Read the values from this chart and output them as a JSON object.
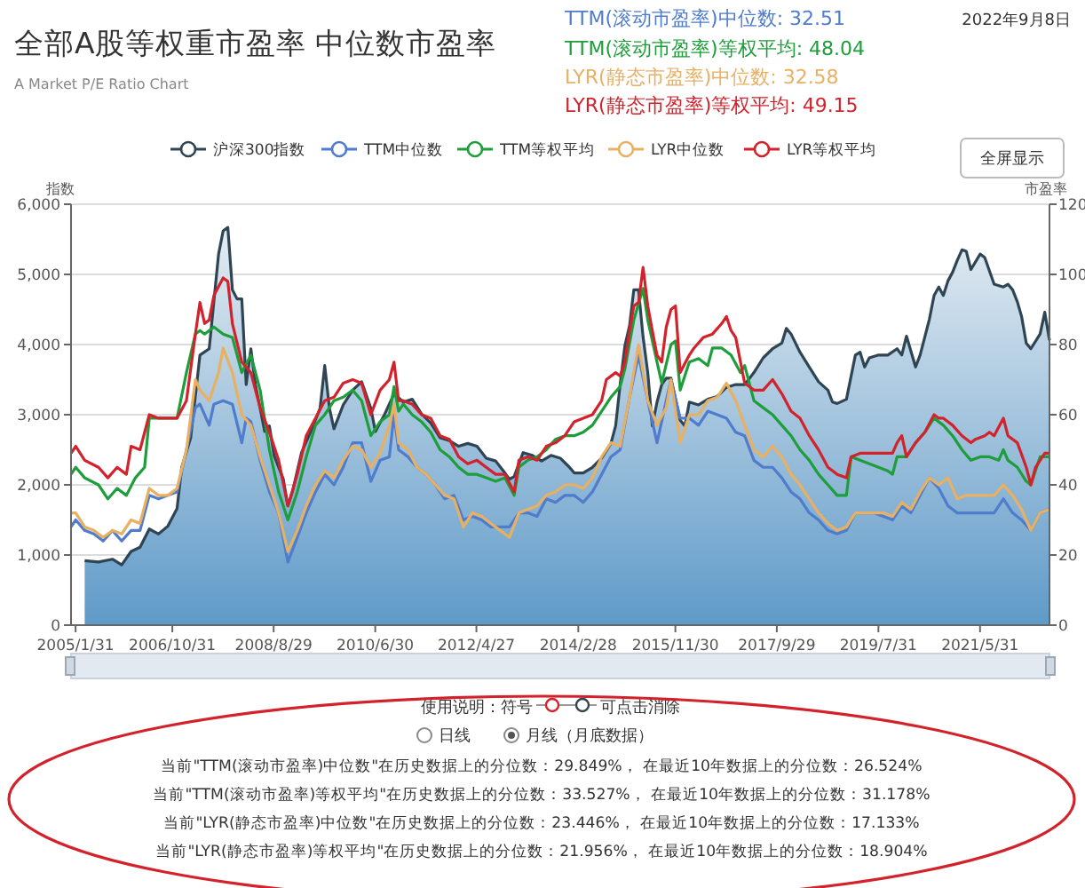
{
  "chart_data": {
    "type": "line",
    "title": "全部A股等权重市盈率 中位数市盈率",
    "subtitle": "A Market P/E Ratio Chart",
    "ylabel": "指数",
    "y2label": "市盈率",
    "xlim": [
      "2005-01",
      "2022-09"
    ],
    "xticks": [
      {
        "value": "2005-01-31",
        "label": "2005/1/31"
      },
      {
        "value": "2006-10-31",
        "label": "2006/10/31"
      },
      {
        "value": "2008-08-29",
        "label": "2008/8/29"
      },
      {
        "value": "2010-06-30",
        "label": "2010/6/30"
      },
      {
        "value": "2012-04-27",
        "label": "2012/4/27"
      },
      {
        "value": "2014-02-28",
        "label": "2014/2/28"
      },
      {
        "value": "2015-11-30",
        "label": "2015/11/30"
      },
      {
        "value": "2017-09-29",
        "label": "2017/9/29"
      },
      {
        "value": "2019-07-31",
        "label": "2019/7/31"
      },
      {
        "value": "2021-05-31",
        "label": "2021/5/31"
      }
    ],
    "ylim": [
      0,
      6000
    ],
    "yticks": [
      {
        "value": 0,
        "label": "0"
      },
      {
        "value": 1000,
        "label": "1,000"
      },
      {
        "value": 2000,
        "label": "2,000"
      },
      {
        "value": 3000,
        "label": "3,000"
      },
      {
        "value": 4000,
        "label": "4,000"
      },
      {
        "value": 5000,
        "label": "5,000"
      },
      {
        "value": 6000,
        "label": "6,000"
      }
    ],
    "y2lim": [
      0,
      120
    ],
    "y2ticks": [
      0,
      20,
      40,
      60,
      80,
      100,
      120
    ],
    "grid": "y",
    "legend": "top",
    "series": [
      {
        "name": "沪深300指数",
        "type": "area",
        "color": "#2f4554",
        "x": [
          "2005-04",
          "2005-07",
          "2005-10",
          "2005-12",
          "2006-02",
          "2006-04",
          "2006-06",
          "2006-08",
          "2006-10",
          "2006-12",
          "2007-01",
          "2007-03",
          "2007-05",
          "2007-07",
          "2007-09",
          "2007-10",
          "2007-11",
          "2007-12",
          "2008-01",
          "2008-02",
          "2008-03",
          "2008-04",
          "2008-05",
          "2008-07",
          "2008-08",
          "2008-09",
          "2008-10",
          "2008-11",
          "2008-12",
          "2009-01",
          "2009-03",
          "2009-05",
          "2009-07",
          "2009-08",
          "2009-09",
          "2009-10",
          "2009-12",
          "2010-02",
          "2010-04",
          "2010-06",
          "2010-07",
          "2010-09",
          "2010-11",
          "2011-01",
          "2011-03",
          "2011-05",
          "2011-07",
          "2011-09",
          "2011-11",
          "2012-01",
          "2012-03",
          "2012-05",
          "2012-07",
          "2012-09",
          "2012-11",
          "2012-12",
          "2013-01",
          "2013-03",
          "2013-05",
          "2013-07",
          "2013-09",
          "2013-11",
          "2014-01",
          "2014-02",
          "2014-04",
          "2014-06",
          "2014-08",
          "2014-10",
          "2014-11",
          "2014-12",
          "2015-01",
          "2015-02",
          "2015-03",
          "2015-04",
          "2015-05",
          "2015-06",
          "2015-07",
          "2015-08",
          "2015-09",
          "2015-10",
          "2015-11",
          "2016-01",
          "2016-02",
          "2016-03",
          "2016-05",
          "2016-07",
          "2016-09",
          "2016-11",
          "2017-01",
          "2017-03",
          "2017-05",
          "2017-07",
          "2017-09",
          "2017-11",
          "2017-12",
          "2018-01",
          "2018-03",
          "2018-05",
          "2018-07",
          "2018-09",
          "2018-10",
          "2018-11",
          "2019-01",
          "2019-03",
          "2019-04",
          "2019-05",
          "2019-06",
          "2019-08",
          "2019-10",
          "2019-12",
          "2020-01",
          "2020-02",
          "2020-04",
          "2020-05",
          "2020-07",
          "2020-08",
          "2020-09",
          "2020-10",
          "2020-11",
          "2020-12",
          "2021-01",
          "2021-02",
          "2021-03",
          "2021-04",
          "2021-06",
          "2021-07",
          "2021-09",
          "2021-11",
          "2021-12",
          "2022-01",
          "2022-02",
          "2022-03",
          "2022-04",
          "2022-05",
          "2022-07",
          "2022-08",
          "2022-09"
        ],
        "values": [
          920,
          900,
          940,
          860,
          1050,
          1110,
          1370,
          1300,
          1410,
          1660,
          2250,
          2670,
          3850,
          3940,
          5290,
          5620,
          5670,
          4780,
          4650,
          4650,
          3430,
          3940,
          3430,
          2760,
          2840,
          2420,
          2250,
          2080,
          1700,
          1910,
          2460,
          2760,
          3090,
          3700,
          3090,
          2800,
          3140,
          3350,
          3470,
          3090,
          2760,
          3010,
          3300,
          3180,
          3220,
          3010,
          2880,
          2670,
          2630,
          2550,
          2590,
          2550,
          2380,
          2340,
          2170,
          2080,
          2120,
          2460,
          2420,
          2340,
          2420,
          2380,
          2250,
          2170,
          2170,
          2250,
          2380,
          2590,
          2840,
          3430,
          3980,
          4270,
          4780,
          4780,
          4110,
          3600,
          2840,
          3180,
          3430,
          3520,
          3520,
          2920,
          2840,
          3180,
          3140,
          3220,
          3260,
          3390,
          3430,
          3430,
          3600,
          3810,
          3940,
          4020,
          4230,
          4150,
          3890,
          3680,
          3470,
          3350,
          3180,
          3160,
          3220,
          3850,
          3890,
          3680,
          3810,
          3850,
          3850,
          3940,
          3850,
          4120,
          3680,
          3850,
          4360,
          4700,
          4820,
          4700,
          4910,
          5030,
          5200,
          5350,
          5330,
          5070,
          5290,
          5240,
          4860,
          4820,
          4860,
          4780,
          4610,
          4400,
          4020,
          3940,
          4150,
          4460,
          4060
        ]
      },
      {
        "name": "TTM中位数",
        "type": "line",
        "axis": "y2",
        "color": "#4f7ccc",
        "x": [
          "2005-01",
          "2005-02",
          "2005-04",
          "2005-06",
          "2005-08",
          "2005-10",
          "2005-12",
          "2006-02",
          "2006-04",
          "2006-06",
          "2006-08",
          "2006-10",
          "2006-12",
          "2007-02",
          "2007-04",
          "2007-05",
          "2007-07",
          "2007-08",
          "2007-10",
          "2007-12",
          "2008-02",
          "2008-03",
          "2008-04",
          "2008-06",
          "2008-08",
          "2008-10",
          "2008-12",
          "2009-02",
          "2009-04",
          "2009-06",
          "2009-08",
          "2009-10",
          "2009-12",
          "2010-02",
          "2010-04",
          "2010-06",
          "2010-08",
          "2010-10",
          "2010-11",
          "2010-12",
          "2011-02",
          "2011-04",
          "2011-06",
          "2011-08",
          "2011-10",
          "2011-12",
          "2012-02",
          "2012-04",
          "2012-06",
          "2012-08",
          "2012-10",
          "2012-12",
          "2013-02",
          "2013-04",
          "2013-06",
          "2013-08",
          "2013-10",
          "2013-12",
          "2014-02",
          "2014-04",
          "2014-06",
          "2014-08",
          "2014-10",
          "2014-12",
          "2015-02",
          "2015-04",
          "2015-06",
          "2015-08",
          "2015-10",
          "2015-11",
          "2016-01",
          "2016-03",
          "2016-05",
          "2016-07",
          "2016-09",
          "2016-11",
          "2017-01",
          "2017-03",
          "2017-05",
          "2017-07",
          "2017-09",
          "2017-11",
          "2018-01",
          "2018-03",
          "2018-05",
          "2018-07",
          "2018-09",
          "2018-11",
          "2019-01",
          "2019-03",
          "2019-05",
          "2019-07",
          "2019-09",
          "2019-11",
          "2020-01",
          "2020-03",
          "2020-05",
          "2020-07",
          "2020-09",
          "2020-11",
          "2021-01",
          "2021-03",
          "2021-05",
          "2021-07",
          "2021-09",
          "2021-11",
          "2022-01",
          "2022-03",
          "2022-05",
          "2022-07",
          "2022-09"
        ],
        "values": [
          28,
          30,
          27,
          26,
          24,
          27,
          24,
          27,
          27,
          37,
          36,
          37,
          38,
          50,
          62,
          63,
          57,
          63,
          64,
          63,
          52,
          59,
          58,
          47,
          38,
          32,
          18,
          25,
          32,
          38,
          43,
          40,
          45,
          52,
          52,
          41,
          47,
          48,
          60,
          50,
          48,
          45,
          43,
          40,
          36,
          37,
          30,
          31,
          30,
          28,
          28,
          28,
          32,
          32,
          31,
          36,
          35,
          37,
          37,
          35,
          38,
          43,
          48,
          50,
          65,
          77,
          64,
          52,
          64,
          70,
          59,
          59,
          57,
          61,
          60,
          59,
          55,
          54,
          47,
          45,
          45,
          42,
          38,
          36,
          32,
          30,
          27,
          26,
          27,
          32,
          32,
          32,
          31,
          30,
          34,
          32,
          37,
          42,
          39,
          34,
          32,
          32,
          32,
          32,
          32,
          36,
          32,
          30,
          27,
          32,
          33
        ]
      },
      {
        "name": "TTM等权平均",
        "type": "line",
        "axis": "y2",
        "color": "#1e9e3a",
        "x": [
          "2005-01",
          "2005-02",
          "2005-04",
          "2005-07",
          "2005-09",
          "2005-11",
          "2006-01",
          "2006-03",
          "2006-05",
          "2006-06",
          "2006-08",
          "2006-10",
          "2006-12",
          "2007-02",
          "2007-04",
          "2007-05",
          "2007-06",
          "2007-08",
          "2007-10",
          "2007-12",
          "2008-02",
          "2008-04",
          "2008-06",
          "2008-08",
          "2008-10",
          "2008-12",
          "2009-02",
          "2009-04",
          "2009-06",
          "2009-08",
          "2009-10",
          "2009-12",
          "2010-02",
          "2010-04",
          "2010-06",
          "2010-08",
          "2010-10",
          "2010-11",
          "2010-12",
          "2011-01",
          "2011-03",
          "2011-05",
          "2011-07",
          "2011-09",
          "2011-11",
          "2012-01",
          "2012-03",
          "2012-05",
          "2012-07",
          "2012-09",
          "2012-11",
          "2013-01",
          "2013-02",
          "2013-04",
          "2013-06",
          "2013-08",
          "2013-10",
          "2013-12",
          "2014-02",
          "2014-04",
          "2014-06",
          "2014-08",
          "2014-10",
          "2014-12",
          "2015-01",
          "2015-03",
          "2015-05",
          "2015-06",
          "2015-08",
          "2015-09",
          "2015-11",
          "2015-12",
          "2016-01",
          "2016-03",
          "2016-05",
          "2016-07",
          "2016-08",
          "2016-10",
          "2016-12",
          "2017-02",
          "2017-03",
          "2017-05",
          "2017-07",
          "2017-09",
          "2017-11",
          "2018-01",
          "2018-03",
          "2018-05",
          "2018-07",
          "2018-09",
          "2018-11",
          "2019-01",
          "2019-02",
          "2019-04",
          "2019-06",
          "2019-08",
          "2019-10",
          "2019-11",
          "2019-12",
          "2020-02",
          "2020-04",
          "2020-06",
          "2020-08",
          "2020-10",
          "2020-12",
          "2021-02",
          "2021-04",
          "2021-06",
          "2021-08",
          "2021-10",
          "2021-11",
          "2021-12",
          "2022-02",
          "2022-04",
          "2022-05",
          "2022-07",
          "2022-09"
        ],
        "values": [
          43,
          45,
          42,
          40,
          36,
          39,
          37,
          42,
          45,
          59,
          59,
          59,
          59,
          72,
          83,
          84,
          83,
          85,
          83,
          82,
          72,
          77,
          67,
          50,
          38,
          30,
          38,
          48,
          57,
          60,
          64,
          65,
          67,
          64,
          54,
          58,
          60,
          68,
          61,
          63,
          60,
          58,
          55,
          50,
          48,
          45,
          43,
          43,
          42,
          41,
          42,
          37,
          45,
          47,
          48,
          50,
          53,
          54,
          54,
          55,
          57,
          61,
          65,
          68,
          73,
          87,
          96,
          87,
          75,
          69,
          80,
          81,
          67,
          75,
          76,
          74,
          79,
          79,
          77,
          72,
          74,
          64,
          62,
          60,
          57,
          54,
          50,
          47,
          43,
          40,
          37,
          37,
          48,
          47,
          46,
          45,
          44,
          43,
          48,
          48,
          52,
          55,
          59,
          57,
          54,
          50,
          47,
          48,
          48,
          47,
          50,
          47,
          45,
          41,
          40,
          48,
          48
        ]
      },
      {
        "name": "LYR中位数",
        "type": "line",
        "axis": "y2",
        "color": "#e8b063",
        "x": [
          "2005-01",
          "2005-02",
          "2005-04",
          "2005-06",
          "2005-08",
          "2005-10",
          "2005-12",
          "2006-02",
          "2006-04",
          "2006-06",
          "2006-08",
          "2006-10",
          "2006-12",
          "2007-02",
          "2007-04",
          "2007-05",
          "2007-07",
          "2007-09",
          "2007-10",
          "2007-12",
          "2008-02",
          "2008-04",
          "2008-06",
          "2008-08",
          "2008-10",
          "2008-12",
          "2009-02",
          "2009-04",
          "2009-06",
          "2009-08",
          "2009-10",
          "2009-12",
          "2010-02",
          "2010-04",
          "2010-06",
          "2010-08",
          "2010-10",
          "2010-11",
          "2010-12",
          "2011-02",
          "2011-04",
          "2011-06",
          "2011-08",
          "2011-10",
          "2011-12",
          "2012-02",
          "2012-04",
          "2012-06",
          "2012-08",
          "2012-10",
          "2012-12",
          "2013-02",
          "2013-04",
          "2013-06",
          "2013-08",
          "2013-10",
          "2013-12",
          "2014-02",
          "2014-04",
          "2014-06",
          "2014-08",
          "2014-10",
          "2014-12",
          "2015-02",
          "2015-04",
          "2015-06",
          "2015-08",
          "2015-10",
          "2015-11",
          "2016-01",
          "2016-03",
          "2016-05",
          "2016-07",
          "2016-09",
          "2016-11",
          "2017-01",
          "2017-03",
          "2017-05",
          "2017-07",
          "2017-09",
          "2017-11",
          "2018-01",
          "2018-03",
          "2018-05",
          "2018-07",
          "2018-09",
          "2018-11",
          "2019-01",
          "2019-03",
          "2019-05",
          "2019-07",
          "2019-09",
          "2019-11",
          "2020-01",
          "2020-03",
          "2020-05",
          "2020-07",
          "2020-09",
          "2020-11",
          "2021-01",
          "2021-03",
          "2021-05",
          "2021-07",
          "2021-09",
          "2021-11",
          "2022-01",
          "2022-03",
          "2022-05",
          "2022-07",
          "2022-09"
        ],
        "values": [
          32,
          32,
          28,
          27,
          25,
          27,
          26,
          30,
          29,
          39,
          37,
          37,
          39,
          50,
          70,
          67,
          64,
          72,
          79,
          72,
          60,
          57,
          48,
          40,
          32,
          21,
          27,
          34,
          40,
          44,
          42,
          47,
          51,
          50,
          45,
          49,
          57,
          63,
          52,
          50,
          45,
          43,
          40,
          37,
          36,
          28,
          32,
          31,
          29,
          27,
          25,
          32,
          33,
          34,
          37,
          38,
          40,
          40,
          39,
          42,
          48,
          52,
          51,
          65,
          80,
          64,
          57,
          62,
          70,
          52,
          60,
          60,
          64,
          65,
          69,
          64,
          57,
          50,
          48,
          51,
          48,
          43,
          40,
          36,
          32,
          29,
          27,
          28,
          32,
          32,
          32,
          32,
          31,
          35,
          33,
          38,
          42,
          40,
          42,
          36,
          37,
          37,
          37,
          37,
          40,
          37,
          33,
          27,
          32,
          33
        ]
      },
      {
        "name": "LYR等权平均",
        "type": "line",
        "axis": "y2",
        "color": "#d2232c",
        "x": [
          "2005-01",
          "2005-02",
          "2005-04",
          "2005-07",
          "2005-09",
          "2005-11",
          "2006-01",
          "2006-02",
          "2006-04",
          "2006-06",
          "2006-08",
          "2006-10",
          "2006-12",
          "2007-02",
          "2007-04",
          "2007-05",
          "2007-06",
          "2007-07",
          "2007-08",
          "2007-10",
          "2007-11",
          "2007-12",
          "2008-02",
          "2008-04",
          "2008-06",
          "2008-08",
          "2008-10",
          "2008-12",
          "2009-02",
          "2009-04",
          "2009-06",
          "2009-08",
          "2009-10",
          "2009-12",
          "2010-02",
          "2010-04",
          "2010-06",
          "2010-08",
          "2010-10",
          "2010-11",
          "2010-12",
          "2011-01",
          "2011-03",
          "2011-05",
          "2011-07",
          "2011-09",
          "2011-11",
          "2012-01",
          "2012-03",
          "2012-05",
          "2012-07",
          "2012-09",
          "2012-11",
          "2013-01",
          "2013-02",
          "2013-04",
          "2013-06",
          "2013-08",
          "2013-10",
          "2013-12",
          "2014-02",
          "2014-04",
          "2014-06",
          "2014-08",
          "2014-09",
          "2014-11",
          "2014-12",
          "2015-01",
          "2015-02",
          "2015-03",
          "2015-04",
          "2015-05",
          "2015-06",
          "2015-07",
          "2015-08",
          "2015-09",
          "2015-10",
          "2015-11",
          "2015-12",
          "2016-01",
          "2016-03",
          "2016-04",
          "2016-06",
          "2016-08",
          "2016-10",
          "2016-11",
          "2016-12",
          "2017-01",
          "2017-03",
          "2017-05",
          "2017-07",
          "2017-09",
          "2017-11",
          "2018-01",
          "2018-03",
          "2018-05",
          "2018-07",
          "2018-09",
          "2018-11",
          "2019-01",
          "2019-02",
          "2019-04",
          "2019-06",
          "2019-08",
          "2019-10",
          "2019-11",
          "2019-12",
          "2020-01",
          "2020-02",
          "2020-04",
          "2020-06",
          "2020-08",
          "2020-09",
          "2020-10",
          "2020-12",
          "2021-02",
          "2021-04",
          "2021-05",
          "2021-07",
          "2021-08",
          "2021-09",
          "2021-11",
          "2021-12",
          "2022-02",
          "2022-04",
          "2022-05",
          "2022-06",
          "2022-08",
          "2022-09"
        ],
        "values": [
          49,
          51,
          47,
          45,
          42,
          45,
          43,
          51,
          50,
          60,
          59,
          59,
          59,
          64,
          83,
          92,
          86,
          87,
          94,
          99,
          98,
          86,
          75,
          72,
          62,
          55,
          47,
          34,
          43,
          54,
          59,
          64,
          65,
          69,
          70,
          69,
          60,
          67,
          70,
          75,
          64,
          64,
          63,
          60,
          59,
          54,
          53,
          48,
          46,
          47,
          45,
          43,
          43,
          38,
          47,
          48,
          47,
          51,
          52,
          54,
          58,
          59,
          60,
          64,
          70,
          72,
          71,
          75,
          84,
          91,
          92,
          102,
          91,
          84,
          77,
          75,
          85,
          90,
          91,
          72,
          77,
          79,
          82,
          83,
          86,
          88,
          84,
          82,
          69,
          67,
          67,
          70,
          66,
          61,
          59,
          54,
          50,
          45,
          43,
          42,
          48,
          49,
          49,
          49,
          49,
          49,
          52,
          54,
          48,
          52,
          55,
          60,
          59,
          59,
          57,
          54,
          52,
          53,
          54,
          55,
          54,
          59,
          54,
          52,
          45,
          40,
          45,
          49,
          49
        ]
      }
    ],
    "annotations": [
      "TTM(滚动市盈率)中位数: 32.51",
      "TTM(滚动市盈率)等权平均: 48.04",
      "LYR(静态市盈率)中位数: 32.58",
      "LYR(静态市盈率)等权平均: 49.15",
      "2022年9月8日",
      "全屏显示",
      "使用说明：符号",
      "可点击消除",
      "日线",
      "月线（月底数据）",
      "当前\"TTM(滚动市盈率)中位数\"在历史数据上的分位数：29.849%， 在最近10年数据上的分位数：26.524%",
      "当前\"TTM(滚动市盈率)等权平均\"在历史数据上的分位数：33.527%， 在最近10年数据上的分位数：31.178%",
      "当前\"LYR(静态市盈率)中位数\"在历史数据上的分位数：23.446%， 在最近10年数据上的分位数：17.133%",
      "当前\"LYR(静态市盈率)等权平均\"在历史数据上的分位数：21.956%， 在最近10年数据上的分位数：18.904%"
    ]
  }
}
